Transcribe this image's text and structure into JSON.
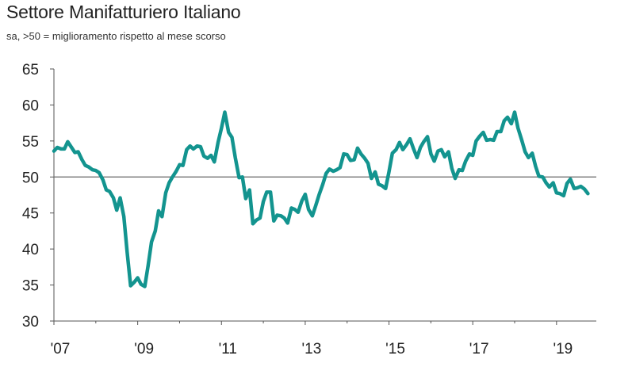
{
  "chart_data": {
    "type": "line",
    "title": "Settore Manifatturiero Italiano",
    "subtitle": "sa, >50 = miglioramento rispetto al mese scorso",
    "xlabel": "",
    "ylabel": "",
    "ylim": [
      30,
      65
    ],
    "yticks": [
      "65",
      "60",
      "55",
      "50",
      "45",
      "40",
      "35",
      "30"
    ],
    "xtick_labels": [
      "'07",
      "'09",
      "'11",
      "'13",
      "'15",
      "'17",
      "'19"
    ],
    "xtick_years": [
      2007,
      2009,
      2011,
      2013,
      2015,
      2017,
      2019
    ],
    "reference_line": 50,
    "grid": false,
    "line_color": "#13948f",
    "x": [
      2007.0,
      2007.08,
      2007.17,
      2007.25,
      2007.33,
      2007.42,
      2007.5,
      2007.58,
      2007.67,
      2007.75,
      2007.83,
      2007.92,
      2008.0,
      2008.08,
      2008.17,
      2008.25,
      2008.33,
      2008.42,
      2008.5,
      2008.58,
      2008.67,
      2008.75,
      2008.83,
      2008.92,
      2009.0,
      2009.08,
      2009.17,
      2009.25,
      2009.33,
      2009.42,
      2009.5,
      2009.58,
      2009.67,
      2009.75,
      2009.83,
      2009.92,
      2010.0,
      2010.08,
      2010.17,
      2010.25,
      2010.33,
      2010.42,
      2010.5,
      2010.58,
      2010.67,
      2010.75,
      2010.83,
      2010.92,
      2011.0,
      2011.08,
      2011.17,
      2011.25,
      2011.33,
      2011.42,
      2011.5,
      2011.58,
      2011.67,
      2011.75,
      2011.83,
      2011.92,
      2012.0,
      2012.08,
      2012.17,
      2012.25,
      2012.33,
      2012.42,
      2012.5,
      2012.58,
      2012.67,
      2012.75,
      2012.83,
      2012.92,
      2013.0,
      2013.08,
      2013.17,
      2013.25,
      2013.33,
      2013.42,
      2013.5,
      2013.58,
      2013.67,
      2013.75,
      2013.83,
      2013.92,
      2014.0,
      2014.08,
      2014.17,
      2014.25,
      2014.33,
      2014.42,
      2014.5,
      2014.58,
      2014.67,
      2014.75,
      2014.83,
      2014.92,
      2015.0,
      2015.08,
      2015.17,
      2015.25,
      2015.33,
      2015.42,
      2015.5,
      2015.58,
      2015.67,
      2015.75,
      2015.83,
      2015.92,
      2016.0,
      2016.08,
      2016.17,
      2016.25,
      2016.33,
      2016.42,
      2016.5,
      2016.58,
      2016.67,
      2016.75,
      2016.83,
      2016.92,
      2017.0,
      2017.08,
      2017.17,
      2017.25,
      2017.33,
      2017.42,
      2017.5,
      2017.58,
      2017.67,
      2017.75,
      2017.83,
      2017.92,
      2018.0,
      2018.08,
      2018.17,
      2018.25,
      2018.33,
      2018.42,
      2018.5,
      2018.58,
      2018.67,
      2018.75,
      2018.83,
      2018.92,
      2019.0,
      2019.08,
      2019.17,
      2019.25,
      2019.33,
      2019.42,
      2019.5,
      2019.58,
      2019.67,
      2019.75
    ],
    "values": [
      53.6,
      54.1,
      53.9,
      53.9,
      54.9,
      54.1,
      53.4,
      53.5,
      52.4,
      51.6,
      51.4,
      51.0,
      50.9,
      50.6,
      49.6,
      48.2,
      48.0,
      47.1,
      45.4,
      47.1,
      44.5,
      39.5,
      34.9,
      35.4,
      36.0,
      35.1,
      34.8,
      37.7,
      41.0,
      42.5,
      45.3,
      44.5,
      47.8,
      49.2,
      50.0,
      50.8,
      51.7,
      51.6,
      53.8,
      54.3,
      53.9,
      54.3,
      54.2,
      52.9,
      52.6,
      53.0,
      52.1,
      54.8,
      56.8,
      59.0,
      56.2,
      55.5,
      52.7,
      49.9,
      50.0,
      47.0,
      48.2,
      43.5,
      44.0,
      44.3,
      46.6,
      47.9,
      47.9,
      43.9,
      44.7,
      44.6,
      44.3,
      43.6,
      45.7,
      45.5,
      45.1,
      46.7,
      47.6,
      45.5,
      44.6,
      46.0,
      47.5,
      49.0,
      50.5,
      51.1,
      50.8,
      51.0,
      51.3,
      53.2,
      53.1,
      52.3,
      52.4,
      54.0,
      53.2,
      52.6,
      51.9,
      49.8,
      50.7,
      49.0,
      48.8,
      48.4,
      50.7,
      53.3,
      53.8,
      54.8,
      53.8,
      54.5,
      55.3,
      54.0,
      52.7,
      54.1,
      54.9,
      55.6,
      53.2,
      52.2,
      53.6,
      53.8,
      52.8,
      53.5,
      51.2,
      49.8,
      51.0,
      50.9,
      52.2,
      53.2,
      53.0,
      55.0,
      55.7,
      56.2,
      55.1,
      55.2,
      55.1,
      56.3,
      56.3,
      57.8,
      58.3,
      57.4,
      59.0,
      56.8,
      55.1,
      53.5,
      52.7,
      53.3,
      51.5,
      50.1,
      50.0,
      49.2,
      48.6,
      49.2,
      47.8,
      47.7,
      47.4,
      49.1,
      49.7,
      48.4,
      48.5,
      48.7,
      48.3,
      47.7
    ]
  }
}
